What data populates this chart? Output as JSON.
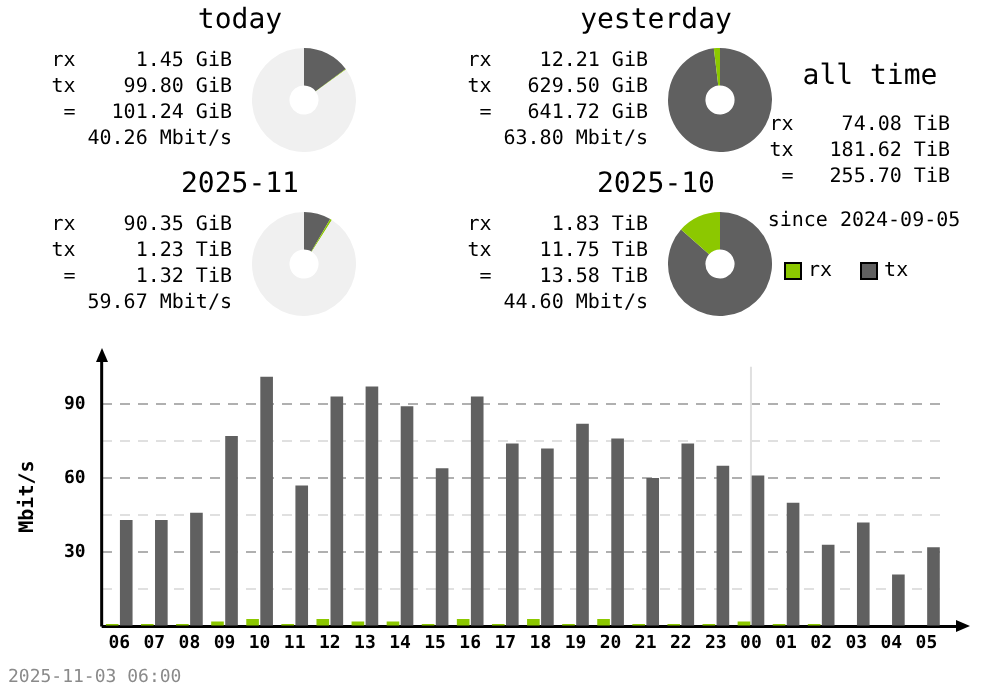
{
  "chart_data": [
    {
      "type": "donut",
      "title": "today",
      "categories": [
        null,
        null,
        null
      ],
      "values": [
        14.8,
        0.2,
        85
      ],
      "colors": [
        "#606060",
        "#8cc800",
        "#f0f0f0"
      ],
      "annotations": [
        "rx     1.45 GiB",
        "tx    99.80 GiB",
        " =   101.24 GiB",
        "40.26 Mbit/s"
      ]
    },
    {
      "type": "donut",
      "title": "yesterday",
      "categories": [
        null,
        null,
        null
      ],
      "values": [
        98.1,
        1.9,
        0
      ],
      "colors": [
        "#606060",
        "#8cc800",
        "#f0f0f0"
      ],
      "annotations": [
        "rx    12.21 GiB",
        "tx   629.50 GiB",
        " =   641.72 GiB",
        "63.80 Mbit/s"
      ]
    },
    {
      "type": "donut",
      "title": "2025-11",
      "categories": [
        null,
        null,
        null
      ],
      "values": [
        8.4,
        0.6,
        91
      ],
      "colors": [
        "#606060",
        "#8cc800",
        "#f0f0f0"
      ],
      "annotations": [
        "rx    90.35 GiB",
        "tx     1.23 TiB",
        " =     1.32 TiB",
        "59.67 Mbit/s"
      ]
    },
    {
      "type": "donut",
      "title": "2025-10",
      "categories": [
        null,
        null,
        null
      ],
      "values": [
        86.5,
        13.5,
        0
      ],
      "colors": [
        "#606060",
        "#8cc800",
        "#f0f0f0"
      ],
      "annotations": [
        "rx     1.83 TiB",
        "tx    11.75 TiB",
        " =    13.58 TiB",
        "44.60 Mbit/s"
      ]
    },
    {
      "type": "other",
      "title": "all time",
      "annotations": [
        "rx    74.08 TiB",
        "tx   181.62 TiB",
        " =   255.70 TiB",
        "since 2024-09-05"
      ]
    },
    {
      "type": "bar",
      "ylabel": "Mbit/s",
      "categories": [
        "06",
        "07",
        "08",
        "09",
        "10",
        "11",
        "12",
        "13",
        "14",
        "15",
        "16",
        "17",
        "18",
        "19",
        "20",
        "21",
        "22",
        "23",
        "00",
        "01",
        "02",
        "03",
        "04",
        "05"
      ],
      "series": [
        {
          "name": "rx",
          "color": "#8cc800",
          "values": [
            1,
            1,
            1,
            2,
            3,
            1,
            3,
            2,
            2,
            1,
            3,
            1,
            3,
            1,
            3,
            1,
            1,
            1,
            2,
            1,
            1,
            0,
            0,
            0
          ]
        },
        {
          "name": "tx",
          "color": "#606060",
          "values": [
            43,
            43,
            46,
            77,
            101,
            57,
            93,
            97,
            89,
            64,
            93,
            74,
            72,
            82,
            76,
            60,
            74,
            65,
            61,
            50,
            33,
            42,
            21,
            32
          ]
        }
      ],
      "ylim": [
        0,
        105
      ],
      "yticks": [
        {
          "value": 0,
          "label": null
        },
        {
          "value": 15,
          "label": null
        },
        30,
        {
          "value": 45,
          "label": null
        },
        60,
        {
          "value": 75,
          "label": null
        },
        90
      ],
      "grid": "y",
      "legend": "top right",
      "line_style": "dashed",
      "ref_lines": [
        {
          "axis": "x",
          "value": "00",
          "color": "#e0e0e0"
        }
      ],
      "annotations": [
        "2025-11-03 06:00"
      ]
    }
  ]
}
